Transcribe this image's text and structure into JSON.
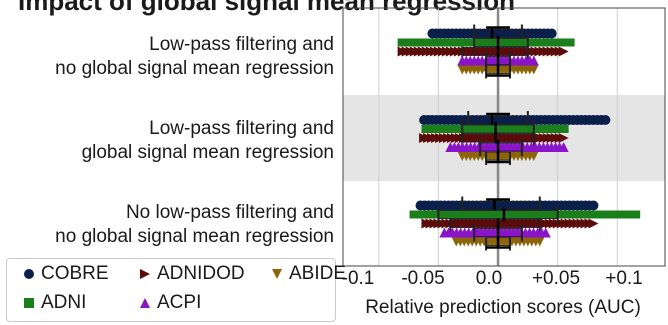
{
  "title_fragment": "Impact of global signal mean regression",
  "chart_data": {
    "type": "scatter",
    "xlabel": "Relative prediction scores (AUC)",
    "xlim": [
      -0.13,
      0.14
    ],
    "xticks": [
      -0.1,
      -0.05,
      0.0,
      0.05,
      0.1
    ],
    "xtick_labels": [
      "-0.1",
      "-0.05",
      "0.0",
      "+0.05",
      "+0.1"
    ],
    "grid": "vertical",
    "legend_placement": "bottom-left, outside plot",
    "rows": [
      {
        "label_line1": "Low-pass filtering and",
        "label_line2": "no global signal mean regression",
        "shaded": false
      },
      {
        "label_line1": "Low-pass filtering and",
        "label_line2": "global signal mean regression",
        "shaded": true
      },
      {
        "label_line1": "No low-pass filtering and",
        "label_line2": "no global signal mean regression",
        "shaded": false
      }
    ],
    "series": [
      {
        "name": "COBRE",
        "marker": "circle",
        "color": "#0b1f4b",
        "points": [
          [
            -0.055,
            0.045,
            -0.02,
            0.02,
            -0.005
          ],
          [
            -0.062,
            0.09,
            -0.025,
            0.025,
            -0.005
          ],
          [
            -0.065,
            0.08,
            -0.03,
            0.035,
            -0.003
          ]
        ]
      },
      {
        "name": "ADNIDOD",
        "marker": "triangle-right",
        "color": "#5c0a0a",
        "points": [
          [
            -0.08,
            0.055,
            -0.03,
            0.025,
            0.0
          ],
          [
            -0.062,
            0.055,
            -0.03,
            0.03,
            -0.002
          ],
          [
            -0.06,
            0.08,
            -0.04,
            0.035,
            0.0
          ]
        ]
      },
      {
        "name": "ABIDE",
        "marker": "triangle-down",
        "color": "#8b6508",
        "points": [
          [
            -0.03,
            0.03,
            -0.01,
            0.01,
            0.0
          ],
          [
            -0.03,
            0.03,
            -0.01,
            0.01,
            0.0
          ],
          [
            -0.035,
            0.035,
            -0.01,
            0.01,
            0.0
          ]
        ]
      },
      {
        "name": "ADNI",
        "marker": "square",
        "color": "#1a7f1a",
        "points": [
          [
            -0.08,
            0.06,
            -0.02,
            0.025,
            0.0
          ],
          [
            -0.06,
            0.055,
            -0.03,
            0.03,
            -0.002
          ],
          [
            -0.07,
            0.115,
            -0.05,
            0.05,
            0.005
          ]
        ]
      },
      {
        "name": "ACPI",
        "marker": "triangle-up",
        "color": "#8a14c7",
        "points": [
          [
            -0.03,
            0.03,
            -0.01,
            0.01,
            0.0
          ],
          [
            -0.04,
            0.055,
            -0.015,
            0.02,
            0.0
          ],
          [
            -0.045,
            0.04,
            -0.02,
            0.02,
            0.0
          ]
        ]
      }
    ]
  }
}
